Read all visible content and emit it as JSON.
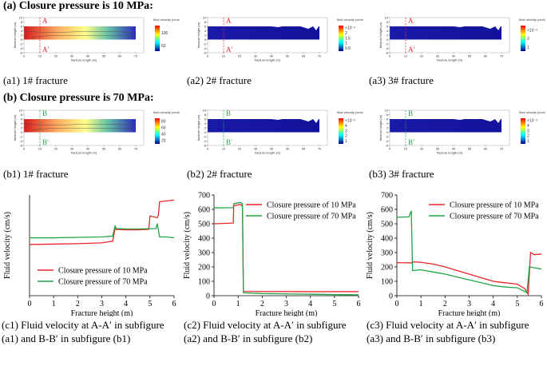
{
  "headings": {
    "a": "(a) Closure pressure is 10 MPa:",
    "b": "(b) Closure pressure is 70 MPa:"
  },
  "contours": {
    "xlabel": "fracture length (m)",
    "ylabel": "fracture height (m)",
    "colorbar_title": "fluid velocity (cm/s)",
    "xticks": [
      0,
      10,
      20,
      30,
      40,
      50,
      60,
      70
    ],
    "yticks": [
      -6,
      -4,
      -2,
      0,
      2,
      4,
      6,
      8,
      10
    ]
  },
  "panels": [
    {
      "caption": "(a1) 1# fracture",
      "marker_top": "A",
      "marker_bottom": "A′",
      "colorbar_ticks": [
        "100",
        "50"
      ]
    },
    {
      "caption": "(a2) 2# fracture",
      "marker_top": "A",
      "marker_bottom": "A′",
      "colorbar_ticks": [
        "×10⁻³",
        "2",
        "1.5",
        "1",
        "0.5"
      ]
    },
    {
      "caption": "(a3) 3# fracture",
      "marker_top": "A",
      "marker_bottom": "A′",
      "colorbar_ticks": [
        "×10⁻³",
        "2",
        "1"
      ]
    },
    {
      "caption": "(b1) 1# fracture",
      "marker_top": "B",
      "marker_bottom": "B′",
      "colorbar_ticks": [
        "80",
        "60",
        "40",
        "20"
      ]
    },
    {
      "caption": "(b2) 2# fracture",
      "marker_top": "B",
      "marker_bottom": "B′",
      "colorbar_ticks": [
        "×10⁻³",
        "4",
        "3",
        "2",
        "1"
      ]
    },
    {
      "caption": "(b3) 3# fracture",
      "marker_top": "B",
      "marker_bottom": "B′",
      "colorbar_ticks": [
        "×10⁻³",
        "4",
        "3",
        "2",
        "1"
      ]
    }
  ],
  "chart_data": [
    {
      "type": "line",
      "xlabel": "Fracture height (m)",
      "ylabel": "Fluid velocity (cm/s)",
      "caption": "(c1) Fluid velocity at A-A′ in subfigure (a1) and B-B′ in subfigure (b1)",
      "xlim": [
        0,
        6
      ],
      "xticks": [
        0,
        1,
        2,
        3,
        4,
        5,
        6
      ],
      "ylim": [
        0,
        120
      ],
      "legend": "lower left",
      "series": [
        {
          "name": "Closure pressure of 10 MPa",
          "color": "#e8262a",
          "x": [
            0,
            1,
            2,
            3,
            3.45,
            3.55,
            3.6,
            4,
            4.5,
            4.95,
            5.0,
            5.3,
            5.35,
            5.4,
            5.7,
            6
          ],
          "values": [
            61,
            61.5,
            62,
            63,
            65,
            80,
            79,
            78.5,
            78.5,
            79,
            95,
            93,
            96,
            112,
            113,
            114
          ]
        },
        {
          "name": "Closure pressure of 70 MPa",
          "color": "#22a447",
          "x": [
            0,
            1,
            2,
            3,
            3.45,
            3.55,
            3.6,
            4,
            4.5,
            5.25,
            5.3,
            5.4,
            5.7,
            6
          ],
          "values": [
            69,
            69,
            69.5,
            70,
            71,
            83,
            80,
            79.5,
            79.5,
            80,
            86,
            70,
            70,
            69
          ]
        }
      ]
    },
    {
      "type": "line",
      "xlabel": "Fracture height (m)",
      "ylabel": "Fluid velocity (cm/s)",
      "caption": "(c2) Fluid velocity at A-A′ in subfigure (a2) and B-B′ in subfigure (b2)",
      "xlim": [
        0,
        6
      ],
      "xticks": [
        0,
        1,
        2,
        3,
        4,
        5,
        6
      ],
      "ylim": [
        0,
        700
      ],
      "yticks": [
        0,
        100,
        200,
        300,
        400,
        500,
        600,
        700
      ],
      "legend": "upper right",
      "series": [
        {
          "name": "Closure pressure of 10 MPa",
          "color": "#e8262a",
          "x": [
            0,
            0.8,
            0.82,
            1.1,
            1.18,
            1.22,
            2,
            4,
            6
          ],
          "values": [
            500,
            505,
            625,
            635,
            620,
            30,
            29,
            28,
            28
          ]
        },
        {
          "name": "Closure pressure of 70 MPa",
          "color": "#22a447",
          "x": [
            0,
            0.8,
            0.82,
            1.1,
            1.18,
            1.22,
            2,
            4,
            6
          ],
          "values": [
            610,
            612,
            640,
            648,
            640,
            20,
            15,
            10,
            6
          ]
        }
      ]
    },
    {
      "type": "line",
      "xlabel": "Fracture height (m)",
      "ylabel": "Fluid velocity (cm/s)",
      "caption": "(c3) Fluid velocity at A-A′ in subfigure (a3) and B-B′ in subfigure (b3)",
      "xlim": [
        0,
        6
      ],
      "xticks": [
        0,
        1,
        2,
        3,
        4,
        5,
        6
      ],
      "ylim": [
        0,
        700
      ],
      "yticks": [
        0,
        100,
        200,
        300,
        400,
        500,
        600,
        700
      ],
      "legend": "upper right",
      "series": [
        {
          "name": "Closure pressure of 10 MPa",
          "color": "#e8262a",
          "x": [
            0,
            0.6,
            0.7,
            1,
            1.5,
            2,
            2.5,
            3,
            3.5,
            4,
            4.5,
            5,
            5.3,
            5.45,
            5.55,
            5.7,
            6
          ],
          "values": [
            230,
            228,
            235,
            232,
            220,
            200,
            175,
            150,
            125,
            100,
            90,
            80,
            50,
            10,
            300,
            285,
            290
          ]
        },
        {
          "name": "Closure pressure of 70 MPa",
          "color": "#22a447",
          "x": [
            0,
            0.5,
            0.6,
            0.65,
            1,
            1.5,
            2,
            2.5,
            3,
            3.5,
            4,
            4.5,
            5,
            5.4,
            5.5,
            6
          ],
          "values": [
            545,
            548,
            590,
            175,
            180,
            165,
            150,
            130,
            110,
            90,
            70,
            60,
            55,
            20,
            200,
            185
          ]
        }
      ]
    }
  ]
}
